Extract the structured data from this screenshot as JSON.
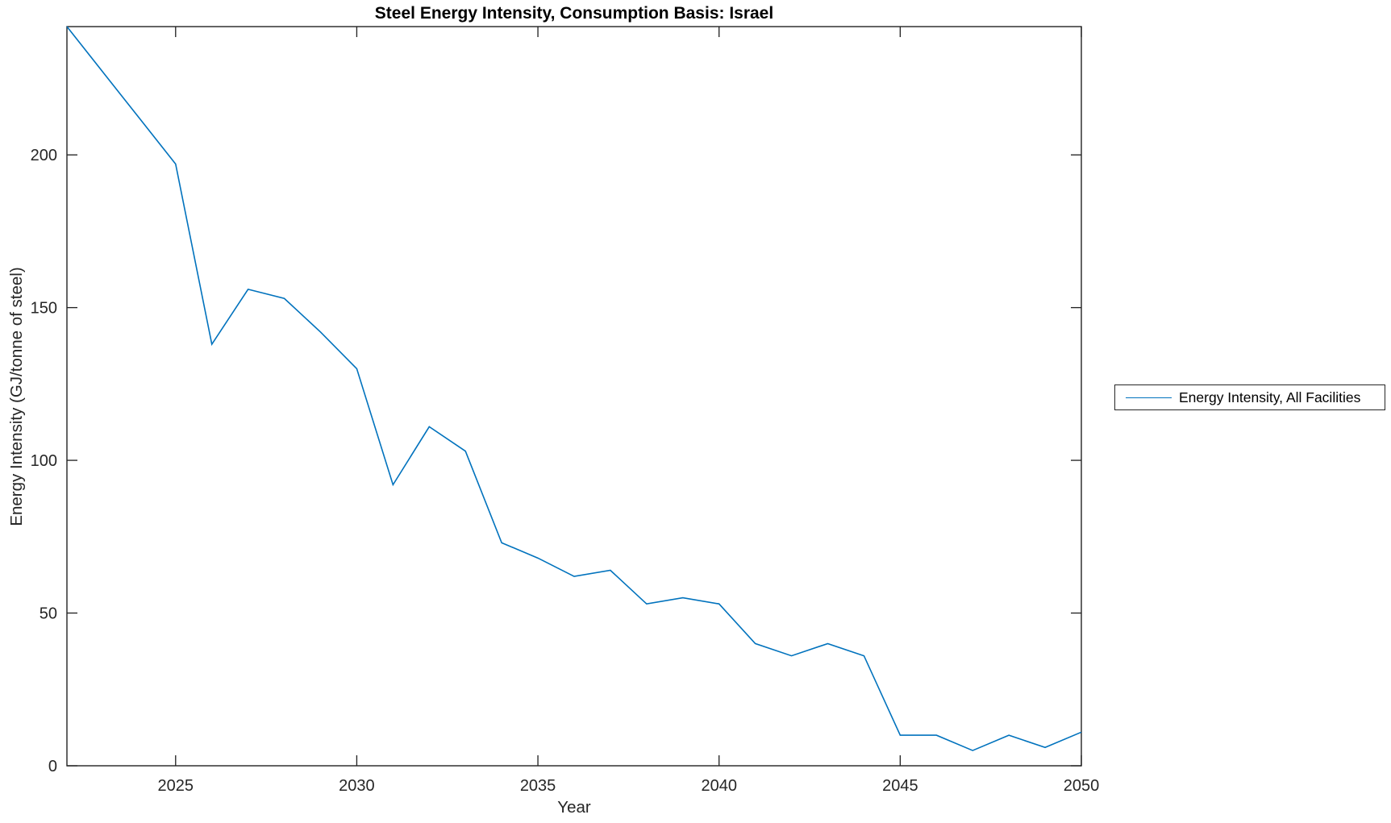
{
  "figure": {
    "background": "#ffffff",
    "axis_color": "#222222",
    "tick_label_color": "#262626"
  },
  "chart_data": {
    "type": "line",
    "title": "Steel Energy Intensity, Consumption Basis: Israel",
    "xlabel": "Year",
    "ylabel": "Energy Intensity (GJ/tonne of steel)",
    "x": [
      2022,
      2023,
      2024,
      2025,
      2026,
      2027,
      2028,
      2029,
      2030,
      2031,
      2032,
      2033,
      2034,
      2035,
      2036,
      2037,
      2038,
      2039,
      2040,
      2041,
      2042,
      2043,
      2044,
      2045,
      2046,
      2047,
      2048,
      2049,
      2050
    ],
    "series": [
      {
        "name": "Energy Intensity, All Facilities",
        "color": "#0072BD",
        "values": [
          242,
          227,
          212,
          197,
          138,
          156,
          153,
          142,
          130,
          92,
          111,
          103,
          73,
          68,
          62,
          64,
          53,
          55,
          53,
          40,
          36,
          40,
          36,
          10,
          10,
          5,
          10,
          6,
          11
        ]
      }
    ],
    "xlim": [
      2022,
      2050
    ],
    "ylim": [
      0,
      242
    ],
    "x_ticks": [
      2025,
      2030,
      2035,
      2040,
      2045,
      2050
    ],
    "y_ticks": [
      0,
      50,
      100,
      150,
      200
    ],
    "grid": false,
    "box": true,
    "tick_direction": "in",
    "legend_position": "outside-right"
  },
  "legend": {
    "items": [
      {
        "label": "Energy Intensity, All Facilities",
        "color": "#0072BD"
      }
    ]
  }
}
